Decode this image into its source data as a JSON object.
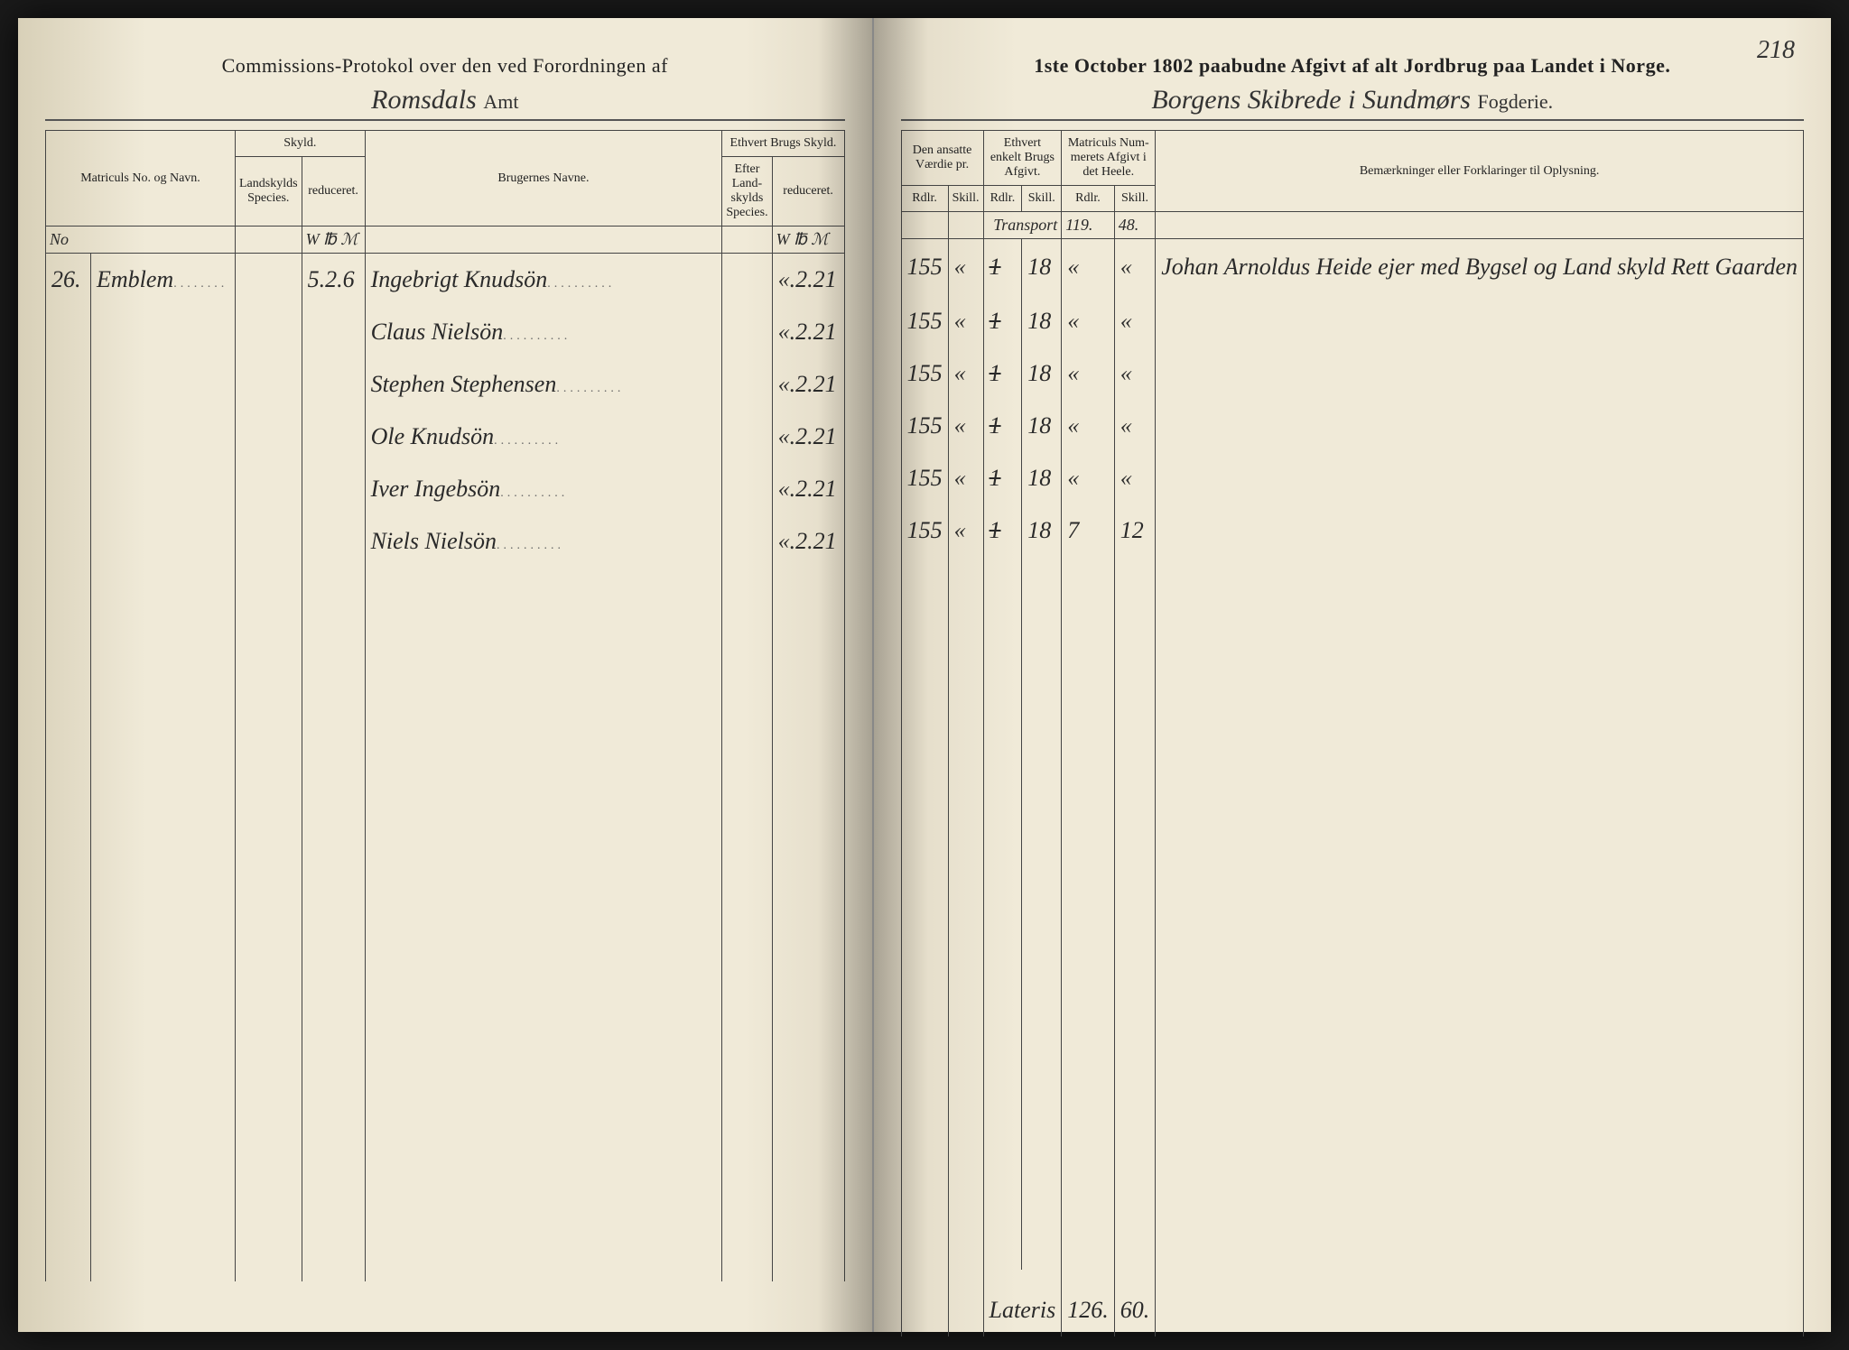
{
  "pageNumber": "218",
  "leftHeader": "Commissions-Protokol over den ved Forordningen af",
  "rightHeader": "1ste October 1802 paabudne Afgivt af alt Jordbrug paa Landet i Norge.",
  "leftSubHeader": {
    "script": "Romsdals",
    "printed": "Amt"
  },
  "rightSubHeader": {
    "script": "Borgens Skibrede i Sundmørs",
    "printed": "Fogderie."
  },
  "leftColumns": {
    "matriculs": "Matriculs No. og Navn.",
    "skyld": "Skyld.",
    "landskyld": "Landskylds Species.",
    "reduceret1": "reduceret.",
    "brugernes": "Brugernes Navne.",
    "ethvert": "Ethvert Brugs Skyld.",
    "efter": "Efter Land-skylds Species.",
    "reduceret2": "reduceret."
  },
  "rightColumns": {
    "ansatte": "Den ansatte Værdie pr.",
    "enkelt": "Ethvert enkelt Brugs Afgivt.",
    "nummer": "Matriculs Num-merets Afgivt i det Heele.",
    "bemerk": "Bemærkninger eller Forklaringer til Oplysning."
  },
  "subCols": {
    "rdlr": "Rdlr.",
    "skill": "Skill."
  },
  "noLabel": "No",
  "unitRow": {
    "wlm1": "W ℔ ℳ",
    "wlm2": "W ℔ ℳ"
  },
  "transport": {
    "label": "Transport",
    "rdlr": "119.",
    "skill": "48."
  },
  "entries": [
    {
      "no": "26.",
      "name": "Emblem",
      "skyld": "5.2.6",
      "bruger": "Ingebrigt Knudsön",
      "red": "«.2.21",
      "vaerdie": "155",
      "v2": "«",
      "afg1": "1",
      "afg2": "18",
      "tot1": "«",
      "tot2": "«",
      "remark": "Johan Arnoldus Heide ejer med Bygsel og Land skyld Rett Gaarden"
    },
    {
      "no": "",
      "name": "",
      "skyld": "",
      "bruger": "Claus Nielsön",
      "red": "«.2.21",
      "vaerdie": "155",
      "v2": "«",
      "afg1": "1",
      "afg2": "18",
      "tot1": "«",
      "tot2": "«",
      "remark": ""
    },
    {
      "no": "",
      "name": "",
      "skyld": "",
      "bruger": "Stephen Stephensen",
      "red": "«.2.21",
      "vaerdie": "155",
      "v2": "«",
      "afg1": "1",
      "afg2": "18",
      "tot1": "«",
      "tot2": "«",
      "remark": ""
    },
    {
      "no": "",
      "name": "",
      "skyld": "",
      "bruger": "Ole Knudsön",
      "red": "«.2.21",
      "vaerdie": "155",
      "v2": "«",
      "afg1": "1",
      "afg2": "18",
      "tot1": "«",
      "tot2": "«",
      "remark": ""
    },
    {
      "no": "",
      "name": "",
      "skyld": "",
      "bruger": "Iver Ingebsön",
      "red": "«.2.21",
      "vaerdie": "155",
      "v2": "«",
      "afg1": "1",
      "afg2": "18",
      "tot1": "«",
      "tot2": "«",
      "remark": ""
    },
    {
      "no": "",
      "name": "",
      "skyld": "",
      "bruger": "Niels Nielsön",
      "red": "«.2.21",
      "vaerdie": "155",
      "v2": "«",
      "afg1": "1",
      "afg2": "18",
      "tot1": "7",
      "tot2": "12",
      "remark": ""
    }
  ],
  "lateris": {
    "label": "Lateris",
    "rdlr": "126.",
    "skill": "60."
  },
  "colors": {
    "paper": "#f0ead8",
    "ink": "#2a2a2a",
    "rule": "#444444"
  }
}
